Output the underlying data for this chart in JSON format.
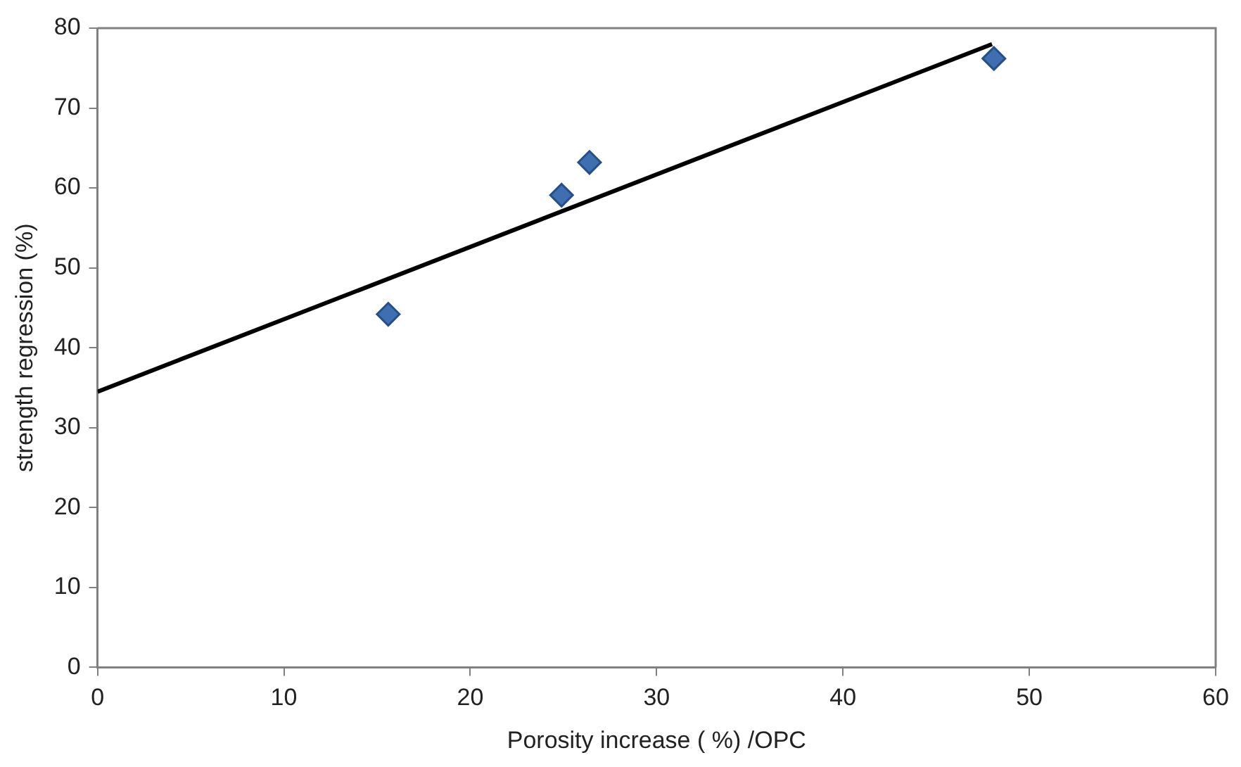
{
  "chart_data": {
    "type": "scatter",
    "xlabel": "Porosity increase ( %) /OPC",
    "ylabel": "strength regression (%)",
    "xlim": [
      0,
      60
    ],
    "xticks": [
      0,
      10,
      20,
      30,
      40,
      50,
      60
    ],
    "ylim": [
      0,
      80
    ],
    "yticks": [
      0,
      10,
      20,
      30,
      40,
      50,
      60,
      70,
      80
    ],
    "grid": false,
    "legend": false,
    "marker": "diamond",
    "series": [
      {
        "type": "scatter",
        "color": "#3f6fb0",
        "x": [
          15.6,
          24.9,
          26.4,
          48.1
        ],
        "values": [
          44.2,
          59.1,
          63.2,
          76.2
        ]
      },
      {
        "type": "line",
        "color": "#000000",
        "marker": "none",
        "x": [
          0,
          48
        ],
        "values": [
          34.5,
          78
        ]
      }
    ]
  }
}
